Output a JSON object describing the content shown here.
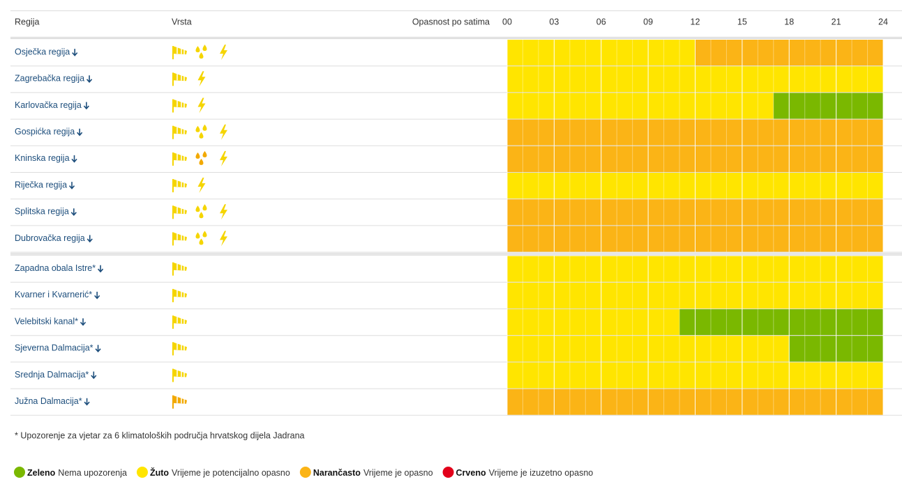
{
  "header": {
    "region": "Regija",
    "type": "Vrsta",
    "hours_title": "Opasnost po satima",
    "ticks": [
      {
        "value": 0,
        "label": "00"
      },
      {
        "value": 3,
        "label": "03"
      },
      {
        "value": 6,
        "label": "06"
      },
      {
        "value": 9,
        "label": "09"
      },
      {
        "value": 12,
        "label": "12"
      },
      {
        "value": 15,
        "label": "15"
      },
      {
        "value": 18,
        "label": "18"
      },
      {
        "value": 21,
        "label": "21"
      },
      {
        "value": 24,
        "label": "24"
      }
    ],
    "range": [
      0,
      24
    ]
  },
  "legend": [
    {
      "name": "Zeleno",
      "desc": "Nema upozorenja",
      "color": "#7ab800"
    },
    {
      "name": "Žuto",
      "desc": "Vrijeme je potencijalno opasno",
      "color": "#ffe500"
    },
    {
      "name": "Narančasto",
      "desc": "Vrijeme je opasno",
      "color": "#fbb416"
    },
    {
      "name": "Crveno",
      "desc": "Vrijeme je izuzetno opasno",
      "color": "#e2001a"
    }
  ],
  "groups": [
    {
      "rows": [
        {
          "name": "Osječka regija",
          "icons": [
            {
              "kind": "wind",
              "level": 1
            },
            {
              "kind": "rain",
              "level": 1
            },
            {
              "kind": "thunder",
              "level": 1
            }
          ],
          "segments": [
            {
              "start": 0,
              "end": 12,
              "level": 1
            },
            {
              "start": 12,
              "end": 24,
              "level": 2
            }
          ]
        },
        {
          "name": "Zagrebačka regija",
          "icons": [
            {
              "kind": "wind",
              "level": 1
            },
            {
              "kind": "thunder",
              "level": 1
            }
          ],
          "segments": [
            {
              "start": 0,
              "end": 24,
              "level": 1
            }
          ]
        },
        {
          "name": "Karlovačka regija",
          "icons": [
            {
              "kind": "wind",
              "level": 1
            },
            {
              "kind": "thunder",
              "level": 1
            }
          ],
          "segments": [
            {
              "start": 0,
              "end": 17,
              "level": 1
            },
            {
              "start": 17,
              "end": 24,
              "level": 0
            }
          ]
        },
        {
          "name": "Gospićka regija",
          "icons": [
            {
              "kind": "wind",
              "level": 1
            },
            {
              "kind": "rain",
              "level": 1
            },
            {
              "kind": "thunder",
              "level": 1
            }
          ],
          "segments": [
            {
              "start": 0,
              "end": 24,
              "level": 2
            }
          ]
        },
        {
          "name": "Kninska regija",
          "icons": [
            {
              "kind": "wind",
              "level": 1
            },
            {
              "kind": "rain",
              "level": 2
            },
            {
              "kind": "thunder",
              "level": 1
            }
          ],
          "segments": [
            {
              "start": 0,
              "end": 24,
              "level": 2
            }
          ]
        },
        {
          "name": "Riječka regija",
          "icons": [
            {
              "kind": "wind",
              "level": 1
            },
            {
              "kind": "thunder",
              "level": 1
            }
          ],
          "segments": [
            {
              "start": 0,
              "end": 24,
              "level": 1
            }
          ]
        },
        {
          "name": "Splitska regija",
          "icons": [
            {
              "kind": "wind",
              "level": 1
            },
            {
              "kind": "rain",
              "level": 1
            },
            {
              "kind": "thunder",
              "level": 1
            }
          ],
          "segments": [
            {
              "start": 0,
              "end": 24,
              "level": 2
            }
          ]
        },
        {
          "name": "Dubrovačka regija",
          "icons": [
            {
              "kind": "wind",
              "level": 1
            },
            {
              "kind": "rain",
              "level": 1
            },
            {
              "kind": "thunder",
              "level": 1
            }
          ],
          "segments": [
            {
              "start": 0,
              "end": 24,
              "level": 2
            }
          ]
        }
      ]
    },
    {
      "rows": [
        {
          "name": "Zapadna obala Istre*",
          "icons": [
            {
              "kind": "wind",
              "level": 1
            }
          ],
          "segments": [
            {
              "start": 0,
              "end": 24,
              "level": 1
            }
          ]
        },
        {
          "name": "Kvarner i Kvarnerić*",
          "icons": [
            {
              "kind": "wind",
              "level": 1
            }
          ],
          "segments": [
            {
              "start": 0,
              "end": 24,
              "level": 1
            }
          ]
        },
        {
          "name": "Velebitski kanal*",
          "icons": [
            {
              "kind": "wind",
              "level": 1
            }
          ],
          "segments": [
            {
              "start": 0,
              "end": 11,
              "level": 1
            },
            {
              "start": 11,
              "end": 24,
              "level": 0
            }
          ]
        },
        {
          "name": "Sjeverna Dalmacija*",
          "icons": [
            {
              "kind": "wind",
              "level": 1
            }
          ],
          "segments": [
            {
              "start": 0,
              "end": 18,
              "level": 1
            },
            {
              "start": 18,
              "end": 24,
              "level": 0
            }
          ]
        },
        {
          "name": "Srednja Dalmacija*",
          "icons": [
            {
              "kind": "wind",
              "level": 1
            }
          ],
          "segments": [
            {
              "start": 0,
              "end": 24,
              "level": 1
            }
          ]
        },
        {
          "name": "Južna Dalmacija*",
          "icons": [
            {
              "kind": "wind",
              "level": 2
            }
          ],
          "segments": [
            {
              "start": 0,
              "end": 24,
              "level": 2
            }
          ]
        }
      ]
    }
  ],
  "footnote": "* Upozorenje za vjetar za 6 klimatoloških područja hrvatskog dijela Jadrana"
}
